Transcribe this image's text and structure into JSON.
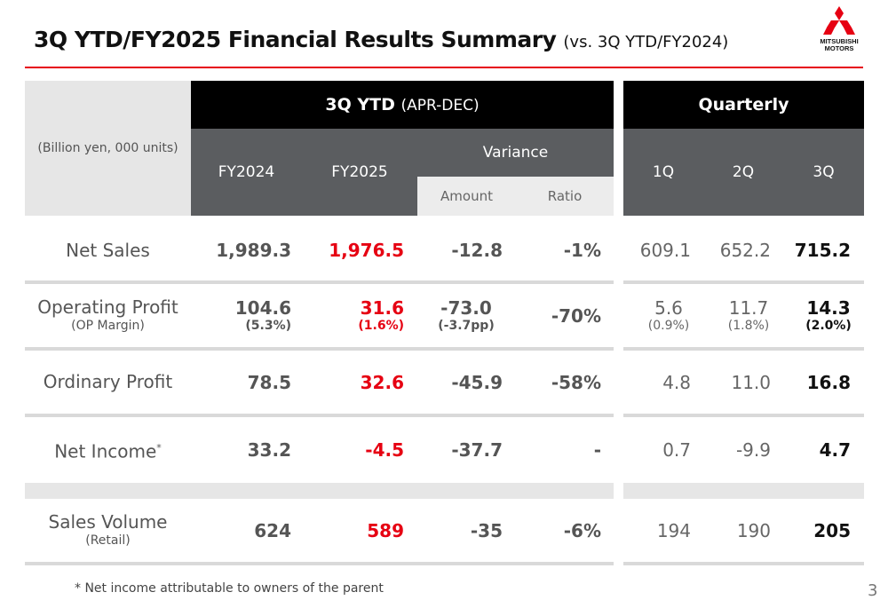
{
  "header": {
    "title": "3Q YTD/FY2025 Financial Results Summary",
    "subtitle": "(vs. 3Q YTD/FY2024)",
    "logo_text_1": "MITSUBISHI",
    "logo_text_2": "MOTORS",
    "accent_color": "#e60012"
  },
  "table": {
    "unit_label": "(Billion yen, 000 units)",
    "ytd_header": "3Q YTD",
    "ytd_period": "(APR-DEC)",
    "quarterly_header": "Quarterly",
    "col_fy2024": "FY2024",
    "col_fy2025": "FY2025",
    "col_variance": "Variance",
    "col_amount": "Amount",
    "col_ratio": "Ratio",
    "col_1q": "1Q",
    "col_2q": "2Q",
    "col_3q": "3Q",
    "rows": {
      "net_sales": {
        "label": "Net Sales",
        "fy2024": "1,989.3",
        "fy2025": "1,976.5",
        "amount": "-12.8",
        "ratio": "-1%",
        "q1": "609.1",
        "q2": "652.2",
        "q3": "715.2"
      },
      "operating_profit": {
        "label": "Operating Profit",
        "sublabel": "(OP Margin)",
        "fy2024": "104.6",
        "fy2024_sub": "(5.3%)",
        "fy2025": "31.6",
        "fy2025_sub": "(1.6%)",
        "amount": "-73.0",
        "amount_sub": "(-3.7pp)",
        "ratio": "-70%",
        "q1": "5.6",
        "q1_sub": "(0.9%)",
        "q2": "11.7",
        "q2_sub": "(1.8%)",
        "q3": "14.3",
        "q3_sub": "(2.0%)"
      },
      "ordinary_profit": {
        "label": "Ordinary Profit",
        "fy2024": "78.5",
        "fy2025": "32.6",
        "amount": "-45.9",
        "ratio": "-58%",
        "q1": "4.8",
        "q2": "11.0",
        "q3": "16.8"
      },
      "net_income": {
        "label": "Net Income",
        "mark": "*",
        "fy2024": "33.2",
        "fy2025": "-4.5",
        "amount": "-37.7",
        "ratio": "-",
        "q1": "0.7",
        "q2": "-9.9",
        "q3": "4.7"
      },
      "sales_volume": {
        "label": "Sales Volume",
        "sublabel": "(Retail)",
        "fy2024": "624",
        "fy2025": "589",
        "amount": "-35",
        "ratio": "-6%",
        "q1": "194",
        "q2": "190",
        "q3": "205"
      }
    }
  },
  "footnote": "* Net income attributable to owners of the parent",
  "page_number": "3"
}
